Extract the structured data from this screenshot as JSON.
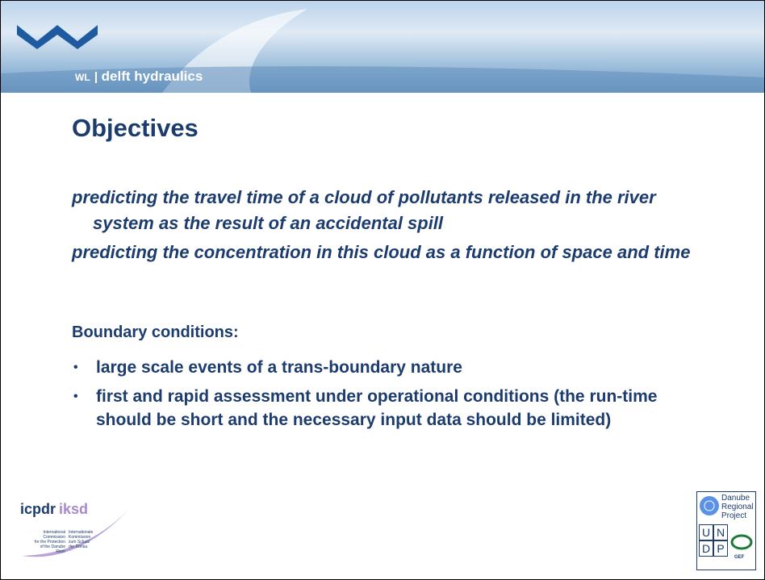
{
  "header": {
    "brand_abbr": "WL",
    "brand_name": "delft hydraulics"
  },
  "title": "Objectives",
  "objectives": [
    "predicting the travel time of a cloud of pollutants released in the river system as the result of an accidental spill",
    "predicting the concentration in this cloud as a function of space and time"
  ],
  "boundary": {
    "heading": "Boundary conditions:",
    "items": [
      "large scale events of a trans-boundary nature",
      "first and rapid assessment under operational conditions (the run-time should be short and the necessary input data should be limited)"
    ]
  },
  "logo_left": {
    "name_a": "icpdr",
    "name_b": "iksd",
    "caption_en": [
      "International",
      "Commission",
      "for the Protection",
      "of the Danube River"
    ],
    "caption_de": [
      "Internationale",
      "Kommission",
      "zum Schutz",
      "der Donau"
    ]
  },
  "logo_right": {
    "lines": [
      "Danube",
      "Regional",
      "Project"
    ],
    "letters": [
      "U",
      "N",
      "D",
      "P"
    ],
    "gef": "GEF"
  }
}
